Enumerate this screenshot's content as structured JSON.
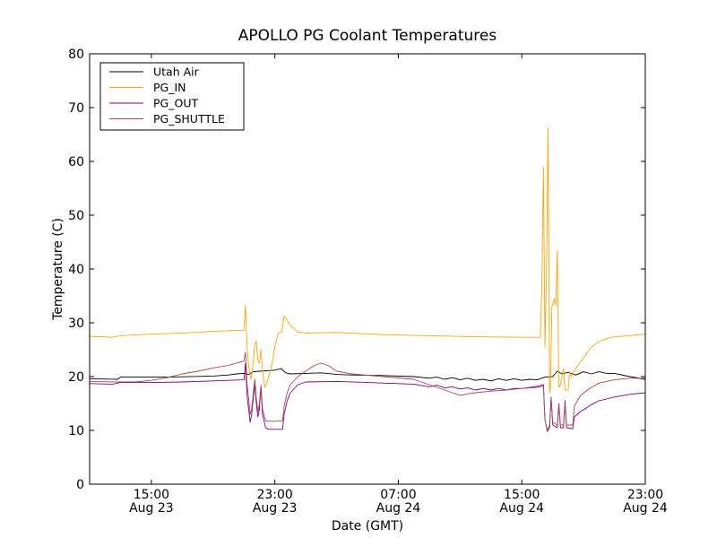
{
  "chart_data": {
    "type": "line",
    "title": "APOLLO PG Coolant Temperatures",
    "xlabel": "Date (GMT)",
    "ylabel": "Temperature (C)",
    "xlim": [
      11.0,
      47.0
    ],
    "ylim": [
      0,
      80
    ],
    "y_ticks": [
      0,
      10,
      20,
      30,
      40,
      50,
      60,
      70,
      80
    ],
    "x_ticks": [
      {
        "x": 15,
        "line1": "15:00",
        "line2": "Aug 23"
      },
      {
        "x": 23,
        "line1": "23:00",
        "line2": "Aug 23"
      },
      {
        "x": 31,
        "line1": "07:00",
        "line2": "Aug 24"
      },
      {
        "x": 39,
        "line1": "15:00",
        "line2": "Aug 24"
      },
      {
        "x": 47,
        "line1": "23:00",
        "line2": "Aug 24"
      }
    ],
    "legend_position": "top-left",
    "series": [
      {
        "name": "Utah Air",
        "color": "#000000",
        "points": [
          [
            11.0,
            19.6
          ],
          [
            12.8,
            19.5
          ],
          [
            13.0,
            19.9
          ],
          [
            16.0,
            19.9
          ],
          [
            19.0,
            20.1
          ],
          [
            20.0,
            20.3
          ],
          [
            20.5,
            20.5
          ],
          [
            21.0,
            20.6
          ],
          [
            21.3,
            20.4
          ],
          [
            21.6,
            20.9
          ],
          [
            22.0,
            21.0
          ],
          [
            22.5,
            21.1
          ],
          [
            23.0,
            21.2
          ],
          [
            23.4,
            21.5
          ],
          [
            23.7,
            20.7
          ],
          [
            24.0,
            20.5
          ],
          [
            25.0,
            20.6
          ],
          [
            26.0,
            20.7
          ],
          [
            27.0,
            20.4
          ],
          [
            28.0,
            20.3
          ],
          [
            30.0,
            20.2
          ],
          [
            32.0,
            20.0
          ],
          [
            33.0,
            19.7
          ],
          [
            33.5,
            19.9
          ],
          [
            34.0,
            19.5
          ],
          [
            34.5,
            19.8
          ],
          [
            35.0,
            19.4
          ],
          [
            35.5,
            19.7
          ],
          [
            36.0,
            19.3
          ],
          [
            36.5,
            19.5
          ],
          [
            37.0,
            19.2
          ],
          [
            37.5,
            19.6
          ],
          [
            38.0,
            19.3
          ],
          [
            38.5,
            19.6
          ],
          [
            39.0,
            19.3
          ],
          [
            39.5,
            19.5
          ],
          [
            40.0,
            19.4
          ],
          [
            40.5,
            19.9
          ],
          [
            41.0,
            20.0
          ],
          [
            41.3,
            21.0
          ],
          [
            41.6,
            20.5
          ],
          [
            42.0,
            20.8
          ],
          [
            42.5,
            20.3
          ],
          [
            43.0,
            20.9
          ],
          [
            43.5,
            20.5
          ],
          [
            44.0,
            20.9
          ],
          [
            44.5,
            20.6
          ],
          [
            45.0,
            20.6
          ],
          [
            46.0,
            20.0
          ],
          [
            47.0,
            19.5
          ]
        ]
      },
      {
        "name": "PG_IN",
        "color": "#ffa500",
        "points": [
          [
            11.0,
            27.5
          ],
          [
            12.5,
            27.3
          ],
          [
            13.0,
            27.6
          ],
          [
            15.0,
            27.9
          ],
          [
            17.0,
            28.1
          ],
          [
            19.0,
            28.4
          ],
          [
            20.5,
            28.6
          ],
          [
            21.0,
            28.6
          ],
          [
            21.1,
            33.2
          ],
          [
            21.2,
            25.5
          ],
          [
            21.3,
            22.0
          ],
          [
            21.45,
            19.5
          ],
          [
            21.55,
            21.0
          ],
          [
            21.7,
            26.0
          ],
          [
            21.8,
            26.6
          ],
          [
            21.9,
            23.0
          ],
          [
            22.0,
            22.5
          ],
          [
            22.1,
            25.0
          ],
          [
            22.2,
            21.0
          ],
          [
            22.35,
            18.0
          ],
          [
            22.5,
            19.0
          ],
          [
            22.8,
            22.0
          ],
          [
            23.0,
            25.5
          ],
          [
            23.2,
            28.0
          ],
          [
            23.45,
            28.3
          ],
          [
            23.6,
            31.3
          ],
          [
            23.8,
            30.5
          ],
          [
            24.0,
            29.5
          ],
          [
            24.5,
            28.3
          ],
          [
            25.0,
            28.1
          ],
          [
            27.0,
            28.2
          ],
          [
            30.0,
            27.8
          ],
          [
            33.0,
            27.6
          ],
          [
            36.0,
            27.4
          ],
          [
            39.0,
            27.3
          ],
          [
            40.2,
            27.3
          ],
          [
            40.3,
            37.0
          ],
          [
            40.4,
            59.0
          ],
          [
            40.5,
            25.5
          ],
          [
            40.6,
            40.0
          ],
          [
            40.7,
            66.2
          ],
          [
            40.8,
            17.0
          ],
          [
            40.85,
            18.0
          ],
          [
            40.95,
            33.0
          ],
          [
            41.1,
            34.5
          ],
          [
            41.2,
            33.2
          ],
          [
            41.3,
            43.5
          ],
          [
            41.4,
            18.0
          ],
          [
            41.5,
            18.5
          ],
          [
            41.7,
            21.5
          ],
          [
            41.8,
            17.5
          ],
          [
            42.0,
            17.5
          ],
          [
            42.1,
            21.0
          ],
          [
            42.2,
            20.0
          ],
          [
            42.5,
            21.5
          ],
          [
            43.0,
            23.5
          ],
          [
            43.5,
            25.5
          ],
          [
            44.0,
            26.5
          ],
          [
            44.5,
            27.1
          ],
          [
            45.0,
            27.4
          ],
          [
            46.0,
            27.6
          ],
          [
            47.0,
            27.9
          ]
        ]
      },
      {
        "name": "PG_OUT",
        "color": "#800080",
        "points": [
          [
            11.0,
            18.7
          ],
          [
            12.5,
            18.6
          ],
          [
            13.0,
            18.9
          ],
          [
            15.0,
            18.9
          ],
          [
            17.0,
            19.0
          ],
          [
            19.0,
            19.2
          ],
          [
            21.0,
            19.4
          ],
          [
            21.1,
            22.5
          ],
          [
            21.2,
            16.5
          ],
          [
            21.3,
            14.0
          ],
          [
            21.4,
            11.5
          ],
          [
            21.5,
            13.0
          ],
          [
            21.6,
            16.0
          ],
          [
            21.7,
            18.5
          ],
          [
            21.8,
            15.0
          ],
          [
            21.9,
            12.5
          ],
          [
            22.0,
            14.0
          ],
          [
            22.1,
            18.0
          ],
          [
            22.2,
            13.0
          ],
          [
            22.4,
            10.5
          ],
          [
            22.6,
            10.2
          ],
          [
            23.0,
            10.2
          ],
          [
            23.5,
            10.2
          ],
          [
            23.6,
            13.0
          ],
          [
            23.8,
            15.5
          ],
          [
            24.0,
            17.0
          ],
          [
            24.5,
            18.5
          ],
          [
            25.0,
            19.0
          ],
          [
            27.0,
            19.1
          ],
          [
            29.0,
            18.9
          ],
          [
            32.0,
            18.6
          ],
          [
            33.0,
            18.1
          ],
          [
            33.5,
            18.4
          ],
          [
            34.0,
            17.9
          ],
          [
            34.5,
            18.1
          ],
          [
            35.0,
            17.7
          ],
          [
            35.5,
            17.9
          ],
          [
            36.0,
            17.5
          ],
          [
            36.5,
            17.8
          ],
          [
            37.0,
            17.5
          ],
          [
            37.5,
            17.8
          ],
          [
            38.0,
            17.5
          ],
          [
            38.5,
            17.8
          ],
          [
            39.0,
            17.8
          ],
          [
            40.0,
            18.2
          ],
          [
            40.4,
            18.5
          ],
          [
            40.5,
            12.0
          ],
          [
            40.65,
            9.8
          ],
          [
            40.8,
            10.5
          ],
          [
            40.9,
            16.2
          ],
          [
            41.0,
            11.0
          ],
          [
            41.3,
            10.5
          ],
          [
            41.4,
            15.0
          ],
          [
            41.5,
            10.5
          ],
          [
            41.7,
            10.5
          ],
          [
            41.8,
            15.5
          ],
          [
            41.9,
            10.5
          ],
          [
            42.3,
            10.3
          ],
          [
            42.4,
            12.5
          ],
          [
            42.8,
            13.5
          ],
          [
            43.5,
            14.8
          ],
          [
            44.0,
            15.5
          ],
          [
            45.0,
            16.2
          ],
          [
            46.0,
            16.7
          ],
          [
            47.0,
            17.0
          ]
        ]
      },
      {
        "name": "PG_SHUTTLE",
        "color": "#b0464b",
        "points": [
          [
            11.0,
            19.1
          ],
          [
            12.8,
            19.0
          ],
          [
            14.0,
            19.0
          ],
          [
            15.0,
            19.3
          ],
          [
            16.0,
            19.8
          ],
          [
            17.0,
            20.5
          ],
          [
            18.0,
            21.0
          ],
          [
            19.0,
            21.6
          ],
          [
            20.0,
            22.1
          ],
          [
            21.0,
            22.9
          ],
          [
            21.1,
            24.5
          ],
          [
            21.2,
            18.5
          ],
          [
            21.3,
            16.0
          ],
          [
            21.4,
            13.0
          ],
          [
            21.5,
            14.0
          ],
          [
            21.6,
            17.0
          ],
          [
            21.7,
            19.5
          ],
          [
            21.8,
            16.0
          ],
          [
            21.9,
            13.5
          ],
          [
            22.0,
            15.0
          ],
          [
            22.1,
            18.5
          ],
          [
            22.2,
            14.0
          ],
          [
            22.4,
            11.8
          ],
          [
            22.6,
            11.7
          ],
          [
            23.0,
            11.7
          ],
          [
            23.5,
            11.8
          ],
          [
            23.6,
            14.5
          ],
          [
            23.8,
            17.0
          ],
          [
            24.0,
            18.5
          ],
          [
            24.5,
            20.0
          ],
          [
            25.0,
            21.0
          ],
          [
            25.5,
            22.0
          ],
          [
            26.0,
            22.5
          ],
          [
            26.5,
            22.0
          ],
          [
            27.0,
            21.0
          ],
          [
            28.0,
            20.5
          ],
          [
            30.0,
            20.0
          ],
          [
            32.0,
            19.5
          ],
          [
            33.0,
            18.5
          ],
          [
            34.0,
            17.5
          ],
          [
            34.5,
            17.0
          ],
          [
            35.0,
            16.5
          ],
          [
            35.5,
            16.8
          ],
          [
            36.0,
            17.0
          ],
          [
            37.0,
            17.3
          ],
          [
            38.0,
            17.5
          ],
          [
            39.0,
            17.8
          ],
          [
            40.0,
            18.0
          ],
          [
            40.4,
            18.2
          ],
          [
            40.5,
            12.0
          ],
          [
            40.65,
            10.0
          ],
          [
            40.8,
            11.0
          ],
          [
            40.9,
            16.0
          ],
          [
            41.0,
            11.5
          ],
          [
            41.3,
            11.0
          ],
          [
            41.4,
            15.0
          ],
          [
            41.5,
            11.0
          ],
          [
            41.7,
            11.0
          ],
          [
            41.8,
            15.0
          ],
          [
            41.9,
            11.0
          ],
          [
            42.3,
            11.0
          ],
          [
            42.4,
            14.5
          ],
          [
            42.8,
            16.5
          ],
          [
            43.5,
            18.0
          ],
          [
            44.0,
            18.8
          ],
          [
            45.0,
            19.4
          ],
          [
            46.0,
            19.7
          ],
          [
            47.0,
            19.7
          ]
        ]
      }
    ]
  }
}
